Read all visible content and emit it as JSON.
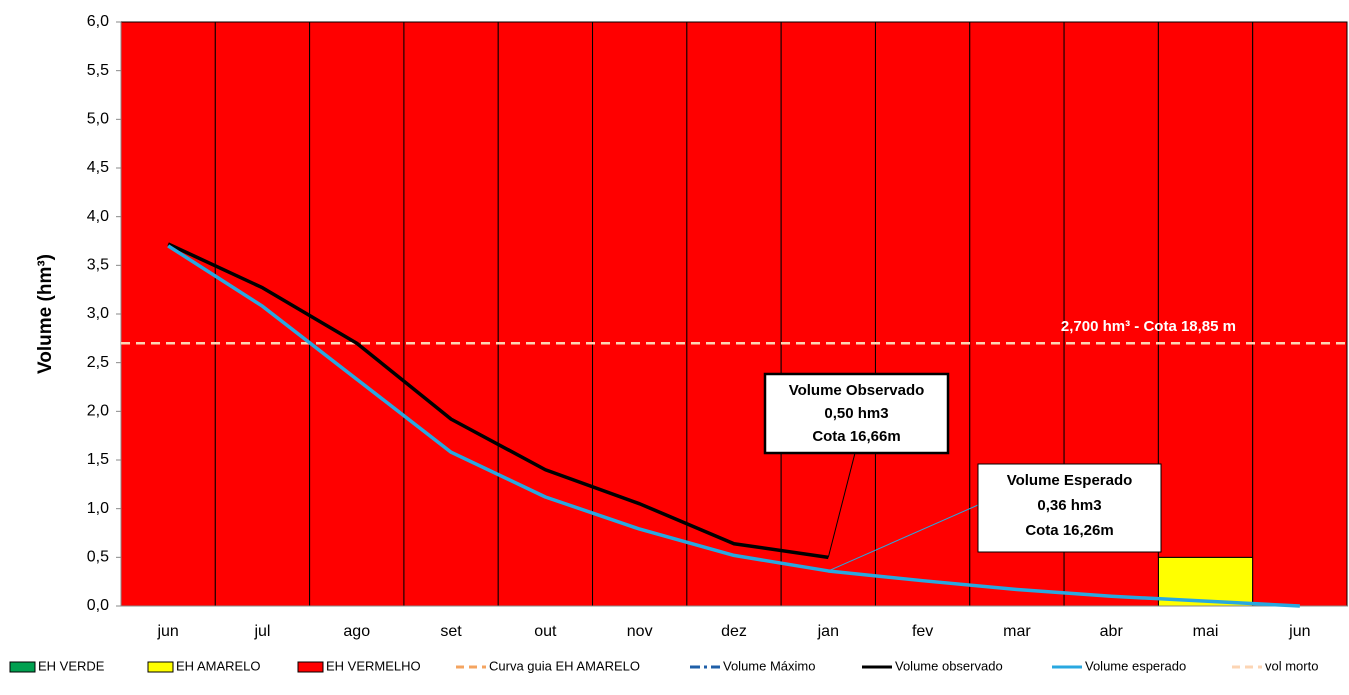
{
  "chart_data": {
    "type": "bar-line",
    "y_label": "Volume (hm³)",
    "categories": [
      "jun",
      "jul",
      "ago",
      "set",
      "out",
      "nov",
      "dez",
      "jan",
      "fev",
      "mar",
      "abr",
      "mai",
      "jun"
    ],
    "ylim": [
      0,
      6
    ],
    "yticks": [
      {
        "value": 0,
        "label": "0,0"
      },
      {
        "value": 0.5,
        "label": "0,5"
      },
      {
        "value": 1,
        "label": "1,0"
      },
      {
        "value": 1.5,
        "label": "1,5"
      },
      {
        "value": 2,
        "label": "2,0"
      },
      {
        "value": 2.5,
        "label": "2,5"
      },
      {
        "value": 3,
        "label": "3,0"
      },
      {
        "value": 3.5,
        "label": "3,5"
      },
      {
        "value": 4,
        "label": "4,0"
      },
      {
        "value": 4.5,
        "label": "4,5"
      },
      {
        "value": 5,
        "label": "5,0"
      },
      {
        "value": 5.5,
        "label": "5,5"
      },
      {
        "value": 6,
        "label": "6,0"
      }
    ],
    "series": [
      {
        "name": "EH VERDE",
        "color": "#00a050",
        "style": "bar",
        "values": [
          0,
          0,
          0,
          0,
          0,
          0,
          0,
          0,
          0,
          0,
          0,
          0,
          0
        ]
      },
      {
        "name": "EH AMARELO",
        "color": "#ffff00",
        "style": "bar",
        "values": [
          0,
          0,
          0,
          0,
          0,
          0,
          0,
          0,
          0,
          0,
          0,
          0.5,
          0
        ]
      },
      {
        "name": "EH VERMELHO",
        "color": "#ff0000",
        "style": "bar",
        "values": [
          6,
          6,
          6,
          6,
          6,
          6,
          6,
          6,
          6,
          6,
          6,
          5.5,
          6
        ]
      },
      {
        "name": "Curva guia EH AMARELO",
        "color": "#f4a460",
        "style": "dashed",
        "values": [
          null,
          null,
          null,
          null,
          null,
          null,
          null,
          null,
          null,
          null,
          null,
          null,
          null
        ]
      },
      {
        "name": "Volume Máximo",
        "color": "#1f5fa8",
        "style": "dashdot",
        "values": [
          null,
          null,
          null,
          null,
          null,
          null,
          null,
          null,
          null,
          null,
          null,
          null,
          null
        ]
      },
      {
        "name": "Volume observado",
        "color": "#000000",
        "style": "line",
        "values": [
          3.72,
          3.27,
          2.7,
          1.92,
          1.4,
          1.05,
          0.64,
          0.5,
          null,
          null,
          null,
          null,
          null
        ]
      },
      {
        "name": "Volume esperado",
        "color": "#29a8e0",
        "style": "line",
        "values": [
          3.7,
          3.08,
          2.33,
          1.58,
          1.12,
          0.79,
          0.52,
          0.36,
          0.26,
          0.17,
          0.1,
          0.05,
          0
        ]
      }
    ],
    "reference_line": {
      "name": "vol morto",
      "color": "#fcd5b4",
      "value": 2.7,
      "label": "2,700 hm³ - Cota 18,85 m"
    },
    "annotations": [
      {
        "lines": [
          "Volume Observado",
          "0,50 hm3",
          "Cota 16,66m"
        ]
      },
      {
        "lines": [
          "Volume Esperado",
          "0,36 hm3",
          "Cota 16,26m"
        ]
      }
    ]
  }
}
